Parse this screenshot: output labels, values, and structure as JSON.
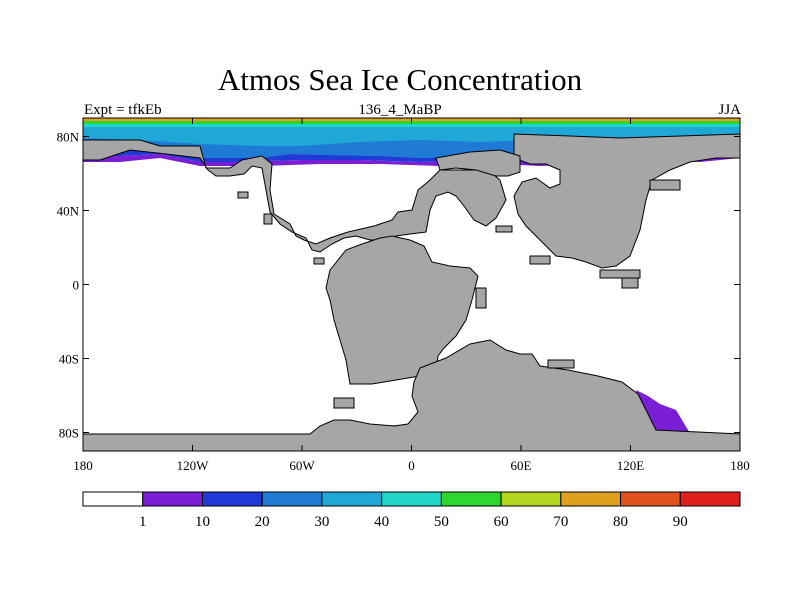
{
  "title": "Atmos Sea Ice Concentration",
  "left_label": "Expt = tfkEb",
  "center_label": "136_4_MaBP",
  "right_label": "JJA",
  "colors": {
    "land": "#a6a6a6",
    "coast": "#000000",
    "ocean": "#ffffff"
  },
  "map": {
    "projection": "cylindrical equidistant",
    "lon_range": [
      -180,
      180
    ],
    "lat_range": [
      -90,
      90
    ],
    "lon_ticks": [
      "180",
      "120W",
      "60W",
      "0",
      "60E",
      "120E",
      "180"
    ],
    "lat_ticks": [
      "80N",
      "40N",
      "0",
      "40S",
      "80S"
    ]
  },
  "colorbar": {
    "labels": [
      "1",
      "10",
      "20",
      "30",
      "40",
      "50",
      "60",
      "70",
      "80",
      "90"
    ],
    "colors": [
      "#ffffff",
      "#7a1fd6",
      "#1f3ad6",
      "#1f7ad6",
      "#1fa8d6",
      "#1fd6c8",
      "#2ed62e",
      "#b4d61f",
      "#e0a01f",
      "#e0531f",
      "#e01f1f"
    ]
  }
}
